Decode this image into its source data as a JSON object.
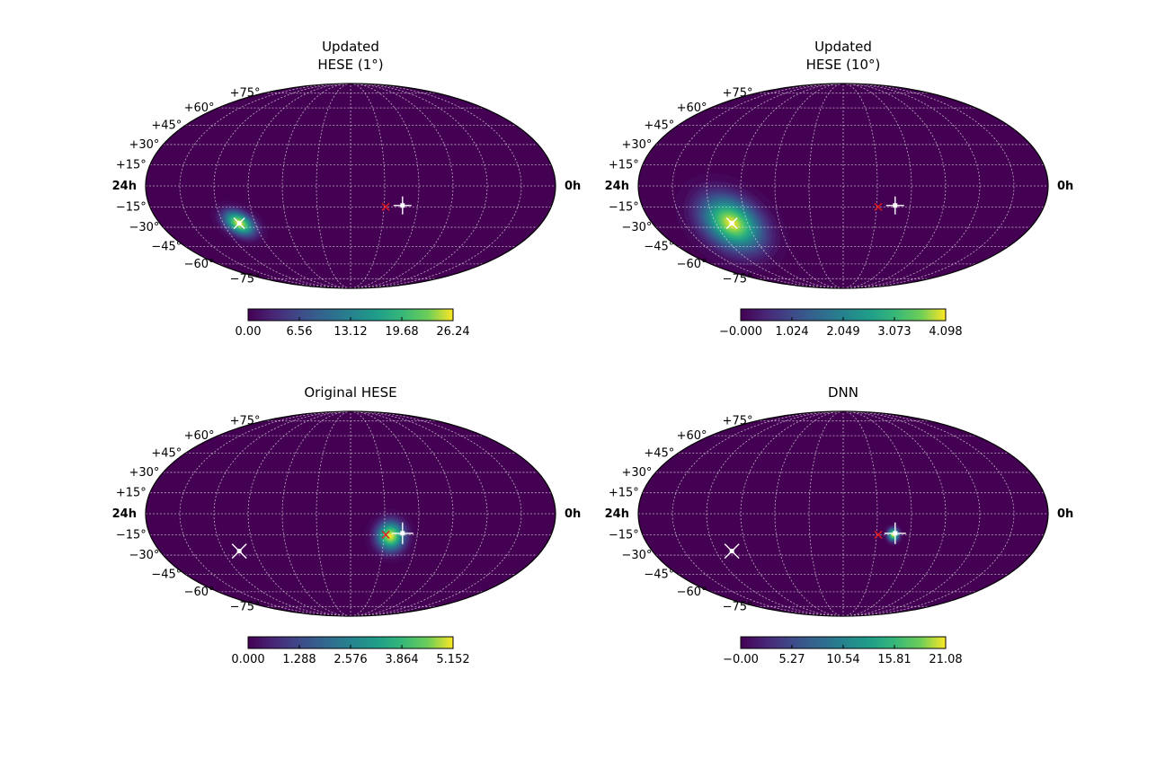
{
  "figure": {
    "panels": [
      {
        "title": [
          "Updated",
          "HESE (1°)"
        ],
        "left_label": "24h",
        "right_label": "0h",
        "dec_labels": [
          "+75°",
          "+60°",
          "+45°",
          "+30°",
          "+15°",
          "−15°",
          "−30°",
          "−45°",
          "−60°",
          "−75°"
        ],
        "colorbar_ticks": [
          "0.00",
          "6.56",
          "13.12",
          "19.68",
          "26.24"
        ]
      },
      {
        "title": [
          "Updated",
          "HESE (10°)"
        ],
        "left_label": "24h",
        "right_label": "0h",
        "dec_labels": [
          "+75°",
          "+60°",
          "+45°",
          "+30°",
          "+15°",
          "−15°",
          "−30°",
          "−45°",
          "−60°",
          "−75°"
        ],
        "colorbar_ticks": [
          "−0.000",
          "1.024",
          "2.049",
          "3.073",
          "4.098"
        ]
      },
      {
        "title": [
          "Original HESE"
        ],
        "left_label": "24h",
        "right_label": "0h",
        "dec_labels": [
          "+75°",
          "+60°",
          "+45°",
          "+30°",
          "+15°",
          "−15°",
          "−30°",
          "−45°",
          "−60°",
          "−75°"
        ],
        "colorbar_ticks": [
          "0.000",
          "1.288",
          "2.576",
          "3.864",
          "5.152"
        ]
      },
      {
        "title": [
          "DNN"
        ],
        "left_label": "24h",
        "right_label": "0h",
        "dec_labels": [
          "+75°",
          "+60°",
          "+45°",
          "+30°",
          "+15°",
          "−15°",
          "−30°",
          "−45°",
          "−60°",
          "−75°"
        ],
        "colorbar_ticks": [
          "−0.00",
          "5.27",
          "10.54",
          "15.81",
          "21.08"
        ]
      }
    ]
  },
  "chart_data": [
    {
      "type": "heatmap",
      "projection": "mollweide",
      "title": "Updated HESE (1°)",
      "colormap": "viridis",
      "colorbar_range": [
        0,
        26.24
      ],
      "grid": true,
      "hotspots": [
        {
          "ra_h": 19.0,
          "dec_deg": -27,
          "sigma_ra_h": 0.7,
          "sigma_dec_deg": 5,
          "peak": 26.24,
          "rotation_deg": 30
        }
      ],
      "markers": [
        {
          "kind": "white-star",
          "ra_h": 19.0,
          "dec_deg": -27,
          "size": "small"
        },
        {
          "kind": "red-x",
          "ra_h": 9.9,
          "dec_deg": -15
        },
        {
          "kind": "white-plus",
          "ra_h": 8.9,
          "dec_deg": -14,
          "size": "small"
        }
      ]
    },
    {
      "type": "heatmap",
      "projection": "mollweide",
      "title": "Updated HESE (10°)",
      "colormap": "viridis",
      "colorbar_range": [
        0,
        4.098
      ],
      "grid": true,
      "hotspots": [
        {
          "ra_h": 19.0,
          "dec_deg": -27,
          "sigma_ra_h": 1.4,
          "sigma_dec_deg": 11,
          "peak": 4.098,
          "rotation_deg": 35
        }
      ],
      "markers": [
        {
          "kind": "white-star",
          "ra_h": 19.0,
          "dec_deg": -27,
          "size": "small"
        },
        {
          "kind": "red-x",
          "ra_h": 9.9,
          "dec_deg": -15
        },
        {
          "kind": "white-plus",
          "ra_h": 8.9,
          "dec_deg": -14,
          "size": "small"
        }
      ]
    },
    {
      "type": "heatmap",
      "projection": "mollweide",
      "title": "Original HESE",
      "colormap": "viridis",
      "colorbar_range": [
        0,
        5.152
      ],
      "grid": true,
      "hotspots": [
        {
          "ra_h": 9.6,
          "dec_deg": -16,
          "sigma_ra_h": 0.55,
          "sigma_dec_deg": 7,
          "peak": 5.152,
          "rotation_deg": 0
        }
      ],
      "markers": [
        {
          "kind": "white-star",
          "ra_h": 19.0,
          "dec_deg": -27,
          "size": "large"
        },
        {
          "kind": "red-x",
          "ra_h": 9.9,
          "dec_deg": -15
        },
        {
          "kind": "white-plus",
          "ra_h": 8.9,
          "dec_deg": -14,
          "size": "large"
        }
      ]
    },
    {
      "type": "heatmap",
      "projection": "mollweide",
      "title": "DNN",
      "colormap": "viridis",
      "colorbar_range": [
        0,
        21.08
      ],
      "grid": true,
      "hotspots": [
        {
          "ra_h": 9.0,
          "dec_deg": -15,
          "sigma_ra_h": 0.22,
          "sigma_dec_deg": 3,
          "peak": 21.08,
          "rotation_deg": 0
        }
      ],
      "markers": [
        {
          "kind": "white-star",
          "ra_h": 19.0,
          "dec_deg": -27,
          "size": "large"
        },
        {
          "kind": "red-x",
          "ra_h": 9.9,
          "dec_deg": -15
        },
        {
          "kind": "white-plus",
          "ra_h": 8.9,
          "dec_deg": -14,
          "size": "large"
        }
      ]
    }
  ]
}
